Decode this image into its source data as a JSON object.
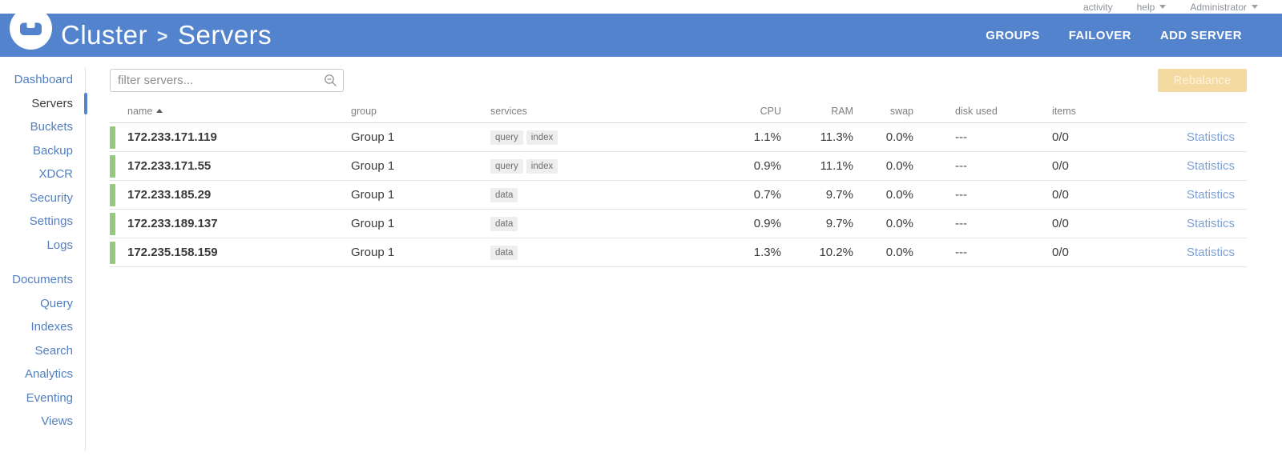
{
  "topbar": {
    "activity": "activity",
    "help": "help",
    "user": "Administrator"
  },
  "header": {
    "breadcrumb": {
      "root": "Cluster",
      "separator": ">",
      "current": "Servers"
    },
    "actions": [
      "GROUPS",
      "FAILOVER",
      "ADD SERVER"
    ]
  },
  "sidebar": {
    "groups": [
      {
        "items": [
          {
            "label": "Dashboard"
          },
          {
            "label": "Servers",
            "active": true
          },
          {
            "label": "Buckets"
          },
          {
            "label": "Backup"
          },
          {
            "label": "XDCR"
          },
          {
            "label": "Security"
          },
          {
            "label": "Settings"
          },
          {
            "label": "Logs"
          }
        ]
      },
      {
        "items": [
          {
            "label": "Documents"
          },
          {
            "label": "Query"
          },
          {
            "label": "Indexes"
          },
          {
            "label": "Search"
          },
          {
            "label": "Analytics"
          },
          {
            "label": "Eventing"
          },
          {
            "label": "Views"
          }
        ]
      }
    ]
  },
  "toolbar": {
    "filter_placeholder": "filter servers...",
    "filter_value": "",
    "rebalance_label": "Rebalance"
  },
  "table": {
    "headers": [
      "name",
      "group",
      "services",
      "CPU",
      "RAM",
      "swap",
      "disk used",
      "items",
      ""
    ],
    "statistics_label": "Statistics",
    "rows": [
      {
        "name": "172.233.171.119",
        "group": "Group 1",
        "services": [
          "query",
          "index"
        ],
        "cpu": "1.1%",
        "ram": "11.3%",
        "swap": "0.0%",
        "disk_used": "---",
        "items": "0/0"
      },
      {
        "name": "172.233.171.55",
        "group": "Group 1",
        "services": [
          "query",
          "index"
        ],
        "cpu": "0.9%",
        "ram": "11.1%",
        "swap": "0.0%",
        "disk_used": "---",
        "items": "0/0"
      },
      {
        "name": "172.233.185.29",
        "group": "Group 1",
        "services": [
          "data"
        ],
        "cpu": "0.7%",
        "ram": "9.7%",
        "swap": "0.0%",
        "disk_used": "---",
        "items": "0/0"
      },
      {
        "name": "172.233.189.137",
        "group": "Group 1",
        "services": [
          "data"
        ],
        "cpu": "0.9%",
        "ram": "9.7%",
        "swap": "0.0%",
        "disk_used": "---",
        "items": "0/0"
      },
      {
        "name": "172.235.158.159",
        "group": "Group 1",
        "services": [
          "data"
        ],
        "cpu": "1.3%",
        "ram": "10.2%",
        "swap": "0.0%",
        "disk_used": "---",
        "items": "0/0"
      }
    ]
  },
  "colors": {
    "header_blue": "#5383cd",
    "link_blue": "#527fc0",
    "health_green": "#94c97e",
    "rebalance_bg": "#f4d9a1",
    "statistics_link": "#7fa1d4"
  }
}
